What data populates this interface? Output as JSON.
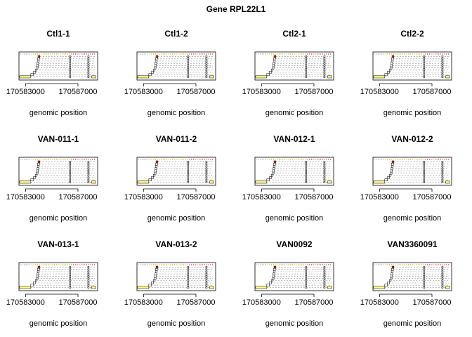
{
  "title": "Gene RPL22L1",
  "chart_data": {
    "type": "bar",
    "xlabel": "genomic position",
    "xticks": [
      170583000,
      170587000
    ],
    "xlim": [
      170582500,
      170588500
    ],
    "panels": [
      {
        "title": "Ctl1-1"
      },
      {
        "title": "Ctl1-2"
      },
      {
        "title": "Ctl2-1"
      },
      {
        "title": "Ctl2-2"
      },
      {
        "title": "VAN-011-1"
      },
      {
        "title": "VAN-011-2"
      },
      {
        "title": "VAN-012-1"
      },
      {
        "title": "VAN-012-2"
      },
      {
        "title": "VAN-013-1"
      },
      {
        "title": "VAN-013-2"
      },
      {
        "title": "VAN0092"
      },
      {
        "title": "VAN3360091"
      }
    ],
    "tracks": [
      {
        "start": 170582550,
        "end": 170583400,
        "color": "#ffff80"
      },
      {
        "start": 170583400,
        "end": 170583600,
        "color": "#ffffff"
      },
      {
        "start": 170583600,
        "end": 170583750,
        "color": "#ffffff"
      },
      {
        "start": 170583750,
        "end": 170583850,
        "color": "#ffffff"
      },
      {
        "start": 170583820,
        "end": 170583950,
        "color": "#ffffff"
      },
      {
        "start": 170583860,
        "end": 170583980,
        "color": "#ffffff"
      },
      {
        "start": 170583880,
        "end": 170584000,
        "color": "#ffffff"
      },
      {
        "start": 170583900,
        "end": 170584020,
        "color": "#ffffff"
      },
      {
        "start": 170583920,
        "end": 170584060,
        "color": "#ffffff"
      },
      {
        "start": 170583950,
        "end": 170584100,
        "color": "#d62728"
      }
    ],
    "exons": [
      {
        "x": 170583700,
        "color": "#ffff80"
      },
      {
        "x": 170586400,
        "color": "#ffffff"
      },
      {
        "x": 170587800,
        "color": "#ffffff"
      },
      {
        "x": 170588200,
        "color": "#ffff80"
      }
    ]
  },
  "colors": {
    "line": "#000000",
    "dash": "#888888",
    "exon_yellow": "#ffff80",
    "exon_red": "#d62728"
  }
}
